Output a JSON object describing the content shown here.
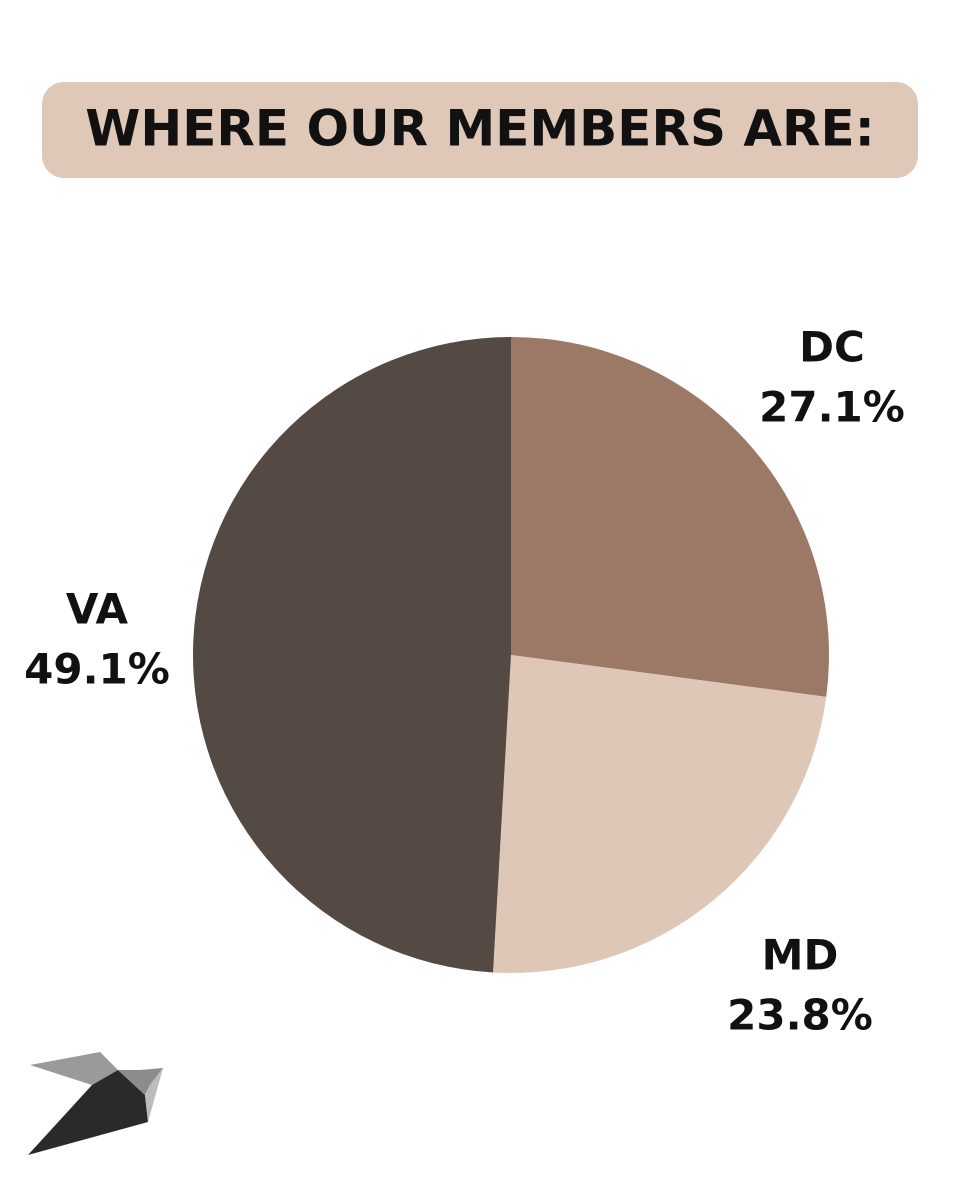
{
  "chart_data": {
    "type": "pie",
    "title": "WHERE OUR MEMBERS ARE:",
    "categories": [
      "DC",
      "MD",
      "VA"
    ],
    "values": [
      27.1,
      23.8,
      49.1
    ],
    "value_labels": [
      "27.1%",
      "23.8%",
      "49.1%"
    ],
    "colors": [
      "#9c7967",
      "#dfc7b7",
      "#554943"
    ]
  }
}
